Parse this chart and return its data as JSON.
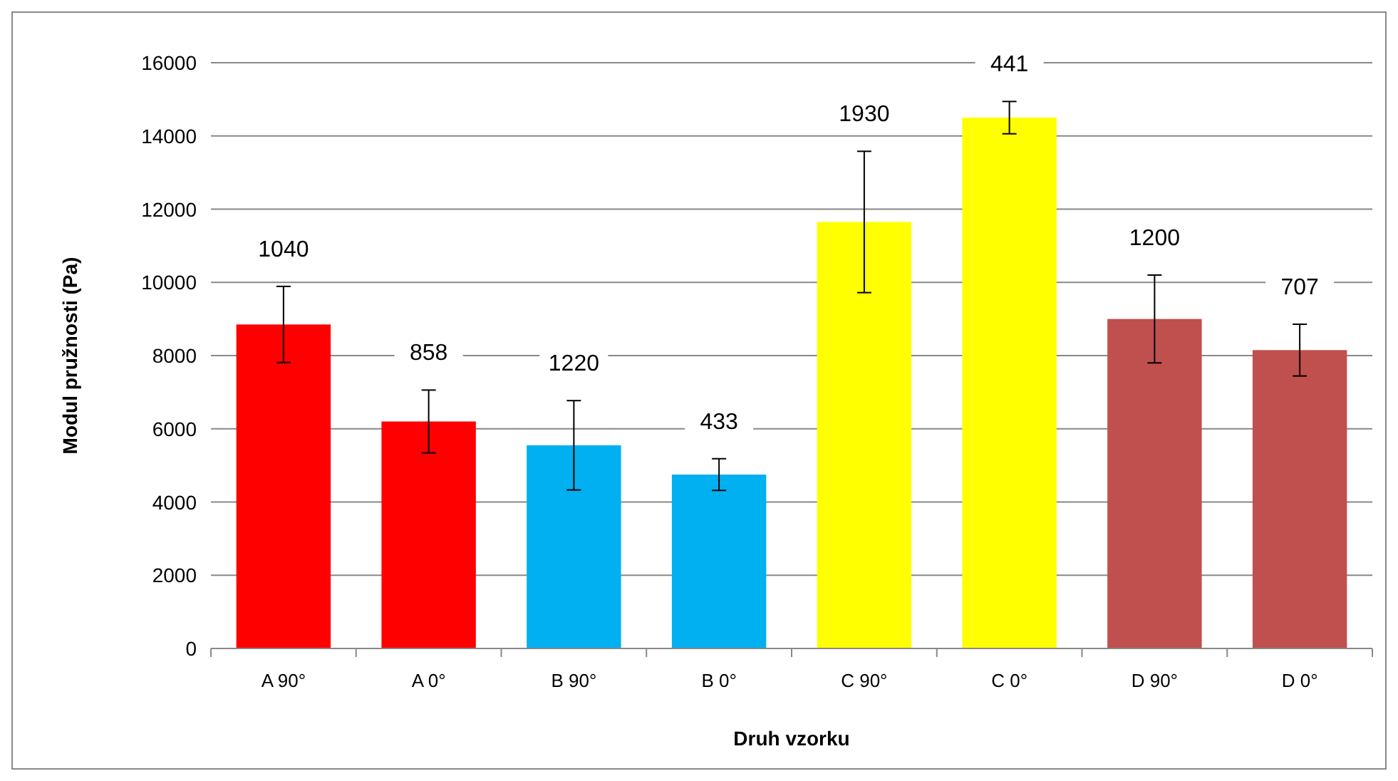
{
  "chart_data": {
    "type": "bar",
    "xlabel": "Druh vzorku",
    "ylabel": "Modul pružnosti (Pa)",
    "categories": [
      "A 90°",
      "A 0°",
      "B 90°",
      "B 0°",
      "C 90°",
      "C 0°",
      "D 90°",
      "D 0°"
    ],
    "values": [
      8850,
      6200,
      5550,
      4750,
      11650,
      14500,
      9000,
      8150
    ],
    "colors": [
      "#ff0000",
      "#ff0000",
      "#00b0f0",
      "#00b0f0",
      "#ffff00",
      "#ffff00",
      "#c0504d",
      "#c0504d"
    ],
    "errors": [
      1040,
      858,
      1220,
      433,
      1930,
      441,
      1200,
      707
    ],
    "annotations": [
      {
        "text": "1040",
        "x": "A 90°",
        "y": 9890
      },
      {
        "text": "858",
        "x": "A 0°",
        "y": 7058
      },
      {
        "text": "1220",
        "x": "B 90°",
        "y": 6770
      },
      {
        "text": "433",
        "x": "B 0°",
        "y": 5183
      },
      {
        "text": "1930",
        "x": "C 90°",
        "y": 13580
      },
      {
        "text": "441",
        "x": "C 0°",
        "y": 14941
      },
      {
        "text": "1200",
        "x": "D 90°",
        "y": 10200
      },
      {
        "text": "707",
        "x": "D 0°",
        "y": 8857
      }
    ],
    "ylim": [
      0,
      16000
    ],
    "yticks": [
      0,
      2000,
      4000,
      6000,
      8000,
      10000,
      12000,
      14000,
      16000
    ],
    "grid": "y"
  }
}
